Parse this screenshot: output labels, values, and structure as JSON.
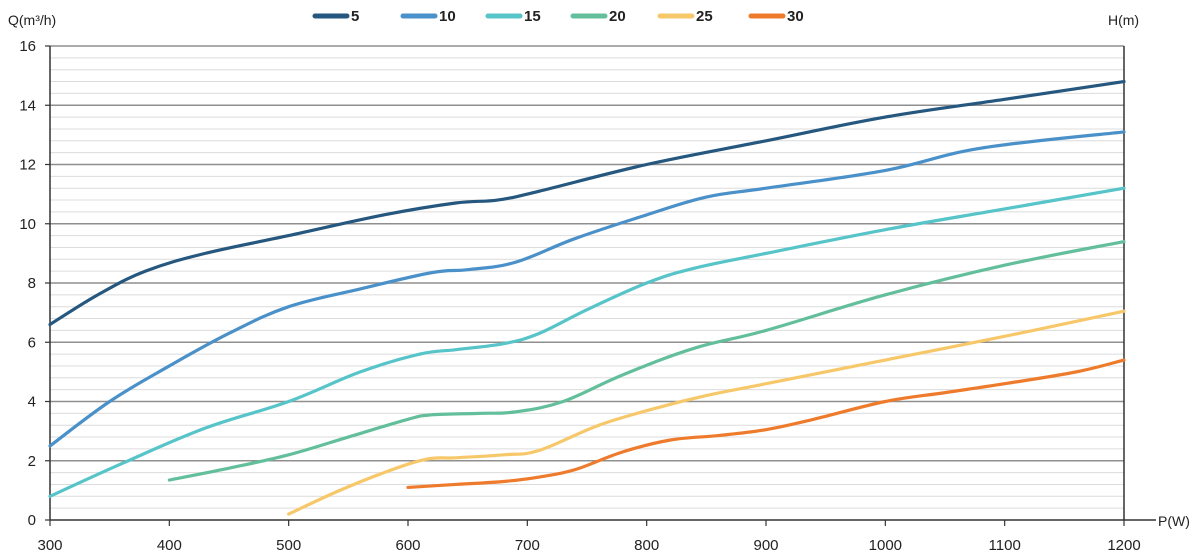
{
  "chart_data": {
    "type": "line",
    "ylabel": "Q(m³/h)",
    "xlabel": "P(W)",
    "right_label": "H(m)",
    "xlim": [
      300,
      1200
    ],
    "ylim": [
      0,
      16
    ],
    "x_ticks": [
      300,
      400,
      500,
      600,
      700,
      800,
      900,
      1000,
      1100,
      1200
    ],
    "y_ticks": [
      0,
      2,
      4,
      6,
      8,
      10,
      12,
      14,
      16
    ],
    "grid": true,
    "legend_position": "top",
    "series": [
      {
        "name": "5",
        "color": "#25577f",
        "points": [
          [
            300,
            6.6
          ],
          [
            340,
            7.6
          ],
          [
            380,
            8.4
          ],
          [
            430,
            9.0
          ],
          [
            500,
            9.6
          ],
          [
            580,
            10.3
          ],
          [
            640,
            10.7
          ],
          [
            675,
            10.8
          ],
          [
            710,
            11.1
          ],
          [
            800,
            12.0
          ],
          [
            900,
            12.8
          ],
          [
            1000,
            13.6
          ],
          [
            1100,
            14.2
          ],
          [
            1200,
            14.8
          ]
        ]
      },
      {
        "name": "10",
        "color": "#4a90c9",
        "points": [
          [
            300,
            2.5
          ],
          [
            350,
            4.0
          ],
          [
            400,
            5.2
          ],
          [
            450,
            6.3
          ],
          [
            500,
            7.2
          ],
          [
            560,
            7.8
          ],
          [
            620,
            8.35
          ],
          [
            650,
            8.45
          ],
          [
            690,
            8.7
          ],
          [
            740,
            9.5
          ],
          [
            800,
            10.3
          ],
          [
            850,
            10.9
          ],
          [
            900,
            11.2
          ],
          [
            1000,
            11.8
          ],
          [
            1080,
            12.55
          ],
          [
            1200,
            13.1
          ]
        ]
      },
      {
        "name": "15",
        "color": "#56c4c8",
        "points": [
          [
            300,
            0.8
          ],
          [
            360,
            1.9
          ],
          [
            430,
            3.1
          ],
          [
            500,
            4.0
          ],
          [
            560,
            5.0
          ],
          [
            610,
            5.6
          ],
          [
            640,
            5.75
          ],
          [
            680,
            5.95
          ],
          [
            710,
            6.3
          ],
          [
            750,
            7.1
          ],
          [
            800,
            8.0
          ],
          [
            840,
            8.5
          ],
          [
            900,
            9.0
          ],
          [
            1000,
            9.8
          ],
          [
            1100,
            10.5
          ],
          [
            1200,
            11.2
          ]
        ]
      },
      {
        "name": "20",
        "color": "#63bf9b",
        "points": [
          [
            400,
            1.35
          ],
          [
            450,
            1.75
          ],
          [
            500,
            2.2
          ],
          [
            550,
            2.8
          ],
          [
            600,
            3.4
          ],
          [
            620,
            3.55
          ],
          [
            660,
            3.6
          ],
          [
            690,
            3.65
          ],
          [
            730,
            4.0
          ],
          [
            780,
            4.9
          ],
          [
            840,
            5.8
          ],
          [
            900,
            6.4
          ],
          [
            1000,
            7.6
          ],
          [
            1100,
            8.6
          ],
          [
            1200,
            9.4
          ]
        ]
      },
      {
        "name": "25",
        "color": "#f7c86a",
        "points": [
          [
            500,
            0.2
          ],
          [
            540,
            0.95
          ],
          [
            580,
            1.6
          ],
          [
            615,
            2.05
          ],
          [
            640,
            2.1
          ],
          [
            680,
            2.2
          ],
          [
            710,
            2.35
          ],
          [
            760,
            3.2
          ],
          [
            810,
            3.8
          ],
          [
            850,
            4.2
          ],
          [
            900,
            4.6
          ],
          [
            1000,
            5.4
          ],
          [
            1100,
            6.2
          ],
          [
            1200,
            7.05
          ]
        ]
      },
      {
        "name": "30",
        "color": "#ee7b2c",
        "points": [
          [
            600,
            1.1
          ],
          [
            640,
            1.2
          ],
          [
            680,
            1.3
          ],
          [
            710,
            1.45
          ],
          [
            740,
            1.7
          ],
          [
            780,
            2.3
          ],
          [
            820,
            2.7
          ],
          [
            860,
            2.85
          ],
          [
            900,
            3.05
          ],
          [
            940,
            3.4
          ],
          [
            1000,
            4.0
          ],
          [
            1050,
            4.3
          ],
          [
            1100,
            4.6
          ],
          [
            1160,
            5.0
          ],
          [
            1200,
            5.4
          ]
        ]
      }
    ]
  }
}
